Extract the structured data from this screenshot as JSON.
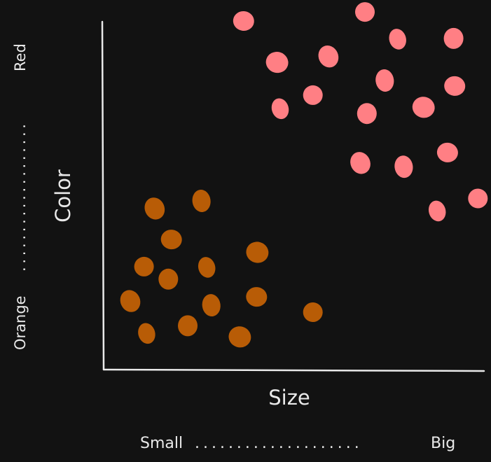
{
  "chart_data": {
    "type": "scatter",
    "xlabel": "Size",
    "ylabel": "Color",
    "x_scale_low": "Small",
    "x_scale_high": "Big",
    "x_scale_dots": ". . . . . . . . . . . . . . . . . . . .",
    "y_scale_low": "Orange",
    "y_scale_high": "Red",
    "y_scale_dots": ". . . . . . . . . . . . . . . . . . .",
    "xlim": [
      0,
      100
    ],
    "ylim": [
      0,
      100
    ],
    "grid": false,
    "series": [
      {
        "color": "#b85c06",
        "points": [
          {
            "x": 13.4,
            "y": 46.3
          },
          {
            "x": 25.7,
            "y": 48.5
          },
          {
            "x": 17.8,
            "y": 37.4
          },
          {
            "x": 10.6,
            "y": 29.6
          },
          {
            "x": 27.1,
            "y": 29.4
          },
          {
            "x": 17.0,
            "y": 26.0
          },
          {
            "x": 40.4,
            "y": 33.7
          },
          {
            "x": 7.0,
            "y": 19.7
          },
          {
            "x": 28.3,
            "y": 18.5
          },
          {
            "x": 40.2,
            "y": 20.9
          },
          {
            "x": 55.0,
            "y": 16.5
          },
          {
            "x": 11.3,
            "y": 10.4
          },
          {
            "x": 22.1,
            "y": 12.6
          },
          {
            "x": 35.8,
            "y": 9.4
          }
        ]
      },
      {
        "color": "#ff7f84",
        "points": [
          {
            "x": 36.8,
            "y": 100.2
          },
          {
            "x": 68.7,
            "y": 102.8
          },
          {
            "x": 77.3,
            "y": 95.0
          },
          {
            "x": 92.0,
            "y": 95.2
          },
          {
            "x": 45.6,
            "y": 88.3
          },
          {
            "x": 59.1,
            "y": 90.0
          },
          {
            "x": 73.9,
            "y": 83.1
          },
          {
            "x": 92.3,
            "y": 81.5
          },
          {
            "x": 55.0,
            "y": 78.9
          },
          {
            "x": 46.4,
            "y": 75.0
          },
          {
            "x": 69.2,
            "y": 73.6
          },
          {
            "x": 84.1,
            "y": 75.4
          },
          {
            "x": 67.5,
            "y": 59.4
          },
          {
            "x": 78.9,
            "y": 58.3
          },
          {
            "x": 90.4,
            "y": 62.4
          },
          {
            "x": 98.4,
            "y": 49.2
          },
          {
            "x": 87.7,
            "y": 45.6
          }
        ]
      }
    ]
  }
}
